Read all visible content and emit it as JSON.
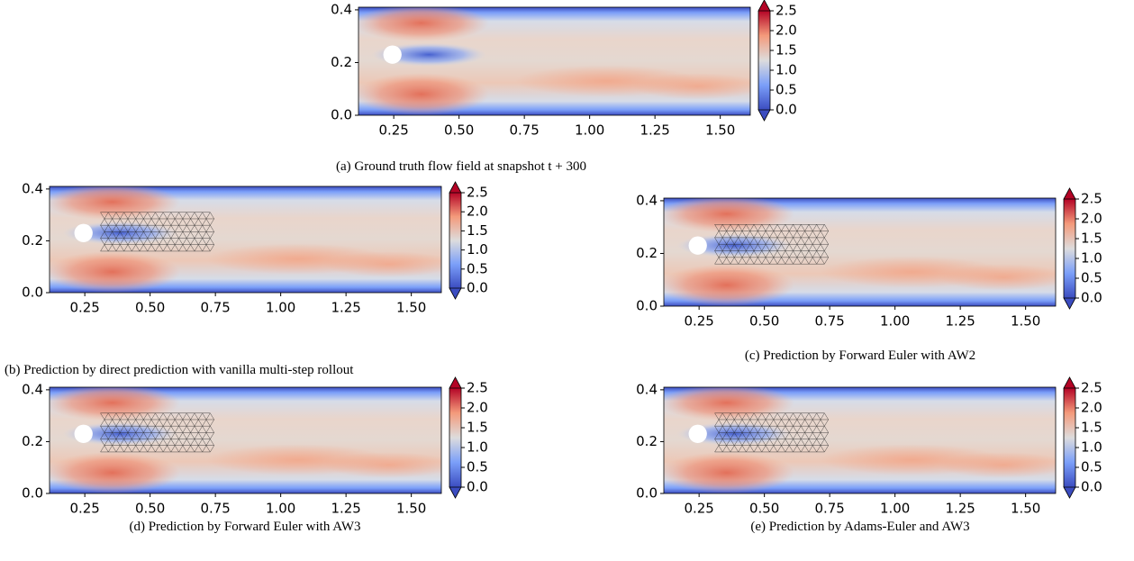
{
  "chart_data": [
    {
      "type": "heatmap",
      "caption": "(a) Ground truth flow field at snapshot t + 300",
      "mesh": false,
      "xlim": [
        0.115,
        1.615
      ],
      "ylim": [
        0,
        0.41
      ],
      "xticks": [
        0.25,
        {
          "value": 0.5,
          "label": "0.50"
        },
        0.75,
        {
          "value": 1,
          "label": "1.00"
        },
        1.25,
        {
          "value": 1.5,
          "label": "1.50"
        }
      ],
      "yticks": [
        {
          "value": 0,
          "label": "0.0"
        },
        0.2,
        0.4
      ],
      "clim": [
        0,
        2.5
      ],
      "cticks": [
        {
          "value": 0,
          "label": "0.0"
        },
        0.5,
        {
          "value": 1,
          "label": "1.0"
        },
        1.5,
        {
          "value": 2,
          "label": "2.0"
        },
        2.5
      ]
    },
    {
      "type": "heatmap",
      "caption": "(b) Prediction by direct prediction with vanilla multi-step rollout",
      "mesh": true,
      "xlim": [
        0.115,
        1.615
      ],
      "ylim": [
        0,
        0.41
      ],
      "xticks": [
        0.25,
        {
          "value": 0.5,
          "label": "0.50"
        },
        0.75,
        {
          "value": 1,
          "label": "1.00"
        },
        1.25,
        {
          "value": 1.5,
          "label": "1.50"
        }
      ],
      "yticks": [
        {
          "value": 0,
          "label": "0.0"
        },
        0.2,
        0.4
      ],
      "clim": [
        0,
        2.5
      ],
      "cticks": [
        {
          "value": 0,
          "label": "0.0"
        },
        0.5,
        {
          "value": 1,
          "label": "1.0"
        },
        1.5,
        {
          "value": 2,
          "label": "2.0"
        },
        2.5
      ]
    },
    {
      "type": "heatmap",
      "caption": "(c) Prediction by Forward Euler with AW2",
      "mesh": true,
      "xlim": [
        0.115,
        1.615
      ],
      "ylim": [
        0,
        0.41
      ],
      "xticks": [
        0.25,
        {
          "value": 0.5,
          "label": "0.50"
        },
        0.75,
        {
          "value": 1,
          "label": "1.00"
        },
        1.25,
        {
          "value": 1.5,
          "label": "1.50"
        }
      ],
      "yticks": [
        {
          "value": 0,
          "label": "0.0"
        },
        0.2,
        0.4
      ],
      "clim": [
        0,
        2.5
      ],
      "cticks": [
        {
          "value": 0,
          "label": "0.0"
        },
        0.5,
        {
          "value": 1,
          "label": "1.0"
        },
        1.5,
        {
          "value": 2,
          "label": "2.0"
        },
        2.5
      ]
    },
    {
      "type": "heatmap",
      "caption": "(d) Prediction by Forward Euler with AW3",
      "mesh": true,
      "xlim": [
        0.115,
        1.615
      ],
      "ylim": [
        0,
        0.41
      ],
      "xticks": [
        0.25,
        {
          "value": 0.5,
          "label": "0.50"
        },
        0.75,
        {
          "value": 1,
          "label": "1.00"
        },
        1.25,
        {
          "value": 1.5,
          "label": "1.50"
        }
      ],
      "yticks": [
        {
          "value": 0,
          "label": "0.0"
        },
        0.2,
        0.4
      ],
      "clim": [
        0,
        2.5
      ],
      "cticks": [
        {
          "value": 0,
          "label": "0.0"
        },
        0.5,
        {
          "value": 1,
          "label": "1.0"
        },
        1.5,
        {
          "value": 2,
          "label": "2.0"
        },
        2.5
      ]
    },
    {
      "type": "heatmap",
      "caption": "(e) Prediction by Adams-Euler and AW3",
      "mesh": true,
      "xlim": [
        0.115,
        1.615
      ],
      "ylim": [
        0,
        0.41
      ],
      "xticks": [
        0.25,
        {
          "value": 0.5,
          "label": "0.50"
        },
        0.75,
        {
          "value": 1,
          "label": "1.00"
        },
        1.25,
        {
          "value": 1.5,
          "label": "1.50"
        }
      ],
      "yticks": [
        {
          "value": 0,
          "label": "0.0"
        },
        0.2,
        0.4
      ],
      "clim": [
        0,
        2.5
      ],
      "cticks": [
        {
          "value": 0,
          "label": "0.0"
        },
        0.5,
        {
          "value": 1,
          "label": "1.0"
        },
        1.5,
        {
          "value": 2,
          "label": "2.0"
        },
        2.5
      ]
    }
  ]
}
